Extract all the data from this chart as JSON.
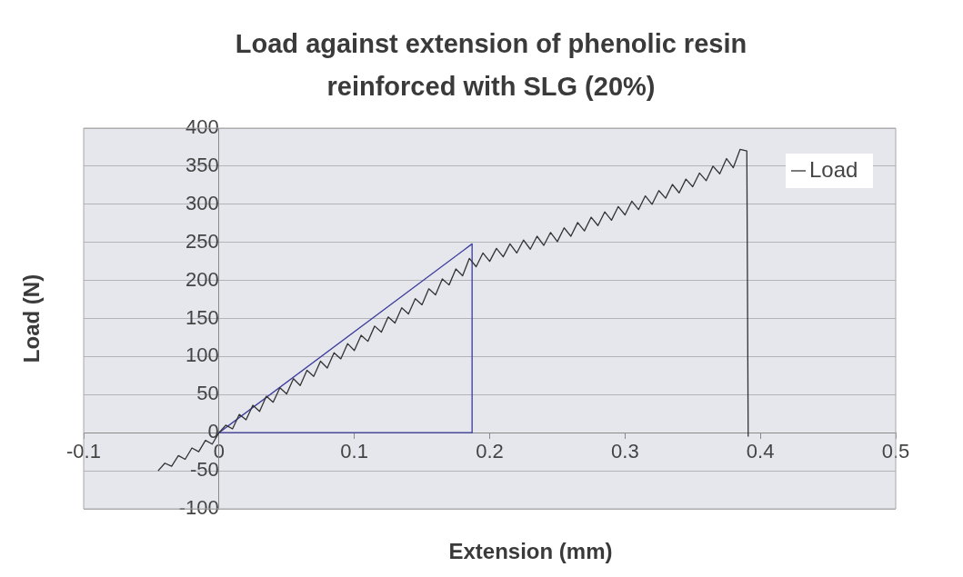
{
  "chart_data": {
    "type": "line",
    "title": "Load against extension of phenolic resin reinforced with SLG (20%)",
    "xlabel": "Extension (mm)",
    "ylabel": "Load (N)",
    "xlim": [
      -0.1,
      0.5
    ],
    "xticks": [
      -0.1,
      0,
      0.1,
      0.2,
      0.3,
      0.4,
      0.5
    ],
    "ylim": [
      -100,
      400
    ],
    "yticks": [
      -100,
      -50,
      0,
      50,
      100,
      150,
      200,
      250,
      300,
      350,
      400
    ],
    "grid": "y",
    "legend": "top right",
    "marker": "none",
    "line_style": "solid",
    "series": [
      {
        "name": "Load",
        "color": "#333333",
        "x": [
          -0.045,
          -0.04,
          -0.035,
          -0.03,
          -0.025,
          -0.02,
          -0.015,
          -0.01,
          -0.005,
          0,
          0.005,
          0.01,
          0.015,
          0.02,
          0.025,
          0.03,
          0.035,
          0.04,
          0.045,
          0.05,
          0.055,
          0.06,
          0.065,
          0.07,
          0.075,
          0.08,
          0.085,
          0.09,
          0.095,
          0.1,
          0.105,
          0.11,
          0.115,
          0.12,
          0.125,
          0.13,
          0.135,
          0.14,
          0.145,
          0.15,
          0.155,
          0.16,
          0.165,
          0.17,
          0.175,
          0.18,
          0.185,
          0.19,
          0.195,
          0.2,
          0.205,
          0.21,
          0.215,
          0.22,
          0.225,
          0.23,
          0.235,
          0.24,
          0.245,
          0.25,
          0.255,
          0.26,
          0.265,
          0.27,
          0.275,
          0.28,
          0.285,
          0.29,
          0.295,
          0.3,
          0.305,
          0.31,
          0.315,
          0.32,
          0.325,
          0.33,
          0.335,
          0.34,
          0.345,
          0.35,
          0.355,
          0.36,
          0.365,
          0.37,
          0.375,
          0.38,
          0.385,
          0.39,
          0.391
        ],
        "values": [
          -50,
          -40,
          -44,
          -30,
          -35,
          -20,
          -25,
          -10,
          -15,
          0,
          10,
          5,
          24,
          17,
          36,
          28,
          48,
          40,
          59,
          51,
          71,
          62,
          82,
          74,
          94,
          85,
          105,
          97,
          117,
          108,
          128,
          120,
          140,
          132,
          152,
          144,
          164,
          156,
          176,
          168,
          189,
          181,
          202,
          194,
          215,
          206,
          229,
          218,
          236,
          225,
          242,
          231,
          248,
          236,
          253,
          241,
          258,
          246,
          263,
          251,
          269,
          258,
          276,
          265,
          283,
          272,
          290,
          279,
          297,
          286,
          304,
          293,
          311,
          300,
          318,
          308,
          326,
          315,
          333,
          323,
          341,
          331,
          350,
          340,
          360,
          348,
          372,
          370,
          -5
        ]
      },
      {
        "color": "#3b3b9a",
        "x": [
          0,
          0.187
        ],
        "values": [
          0,
          248
        ]
      },
      {
        "color": "#3b3b9a",
        "x": [
          0.187,
          0.187
        ],
        "values": [
          248,
          0
        ]
      },
      {
        "color": "#3b3b9a",
        "x": [
          0,
          0.187
        ],
        "values": [
          0,
          0
        ]
      }
    ]
  }
}
